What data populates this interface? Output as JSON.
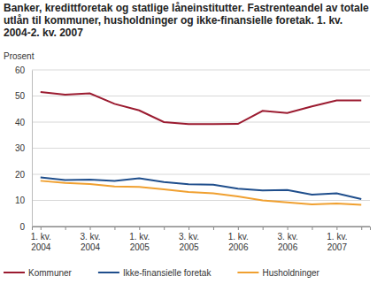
{
  "chart_data": {
    "type": "line",
    "title": "Banker, kredittforetak og statlige låneinstitutter. Fastrenteandel av totale utlån til kommuner, husholdninger og ikke-finansielle foretak. 1. kv. 2004-2. kv. 2007",
    "y_label": "Prosent",
    "categories": [
      "1. kv. 2004",
      null,
      "3. kv. 2004",
      null,
      "1. kv. 2005",
      null,
      "3. kv. 2005",
      null,
      "1. kv. 2006",
      null,
      "3. kv. 2006",
      null,
      "1. kv. 2007",
      null
    ],
    "series": [
      {
        "name": "Kommuner",
        "color": "#9b1b30",
        "values": [
          51.5,
          50.5,
          51,
          47,
          44.5,
          40,
          39.2,
          39.2,
          39.3,
          44.3,
          43.5,
          46,
          48.3,
          48.3
        ]
      },
      {
        "name": "Ikke-finansielle foretak",
        "color": "#1f4e8c",
        "values": [
          18.8,
          17.8,
          18,
          17.5,
          18.5,
          17,
          16.2,
          16,
          14.5,
          13.8,
          14,
          12.2,
          12.7,
          10.5
        ]
      },
      {
        "name": "Husholdninger",
        "color": "#f0a030",
        "values": [
          17.5,
          16.7,
          16.3,
          15.3,
          15.2,
          14.2,
          13.2,
          12.7,
          11.5,
          10,
          9.2,
          8.5,
          8.8,
          8.3
        ]
      }
    ],
    "ylim": [
      0,
      60
    ],
    "yticks": [
      0,
      10,
      20,
      30,
      40,
      50,
      60
    ],
    "grid": true,
    "legend": "bottom"
  }
}
